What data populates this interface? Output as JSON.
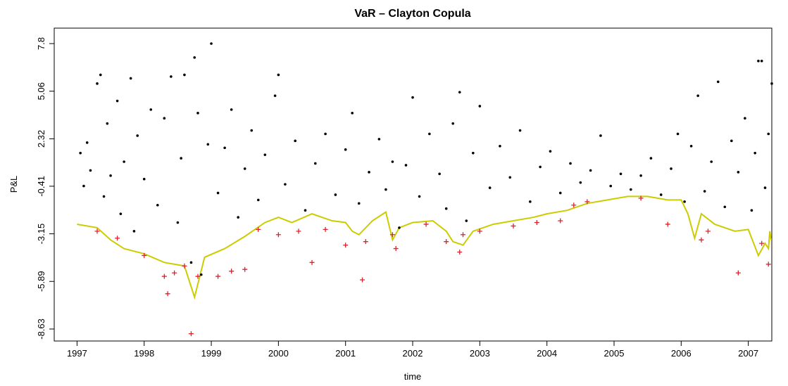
{
  "chart_data": {
    "type": "scatter",
    "title": "VaR – Clayton Copula",
    "xlabel": "time",
    "ylabel": "P&L",
    "xlim": [
      1996.66,
      2007.35
    ],
    "ylim": [
      -9.32,
      8.69
    ],
    "xticks": [
      1997,
      1998,
      1999,
      2000,
      2001,
      2002,
      2003,
      2004,
      2005,
      2006,
      2007
    ],
    "yticks": [
      -8.63,
      -5.89,
      -3.15,
      -0.41,
      2.32,
      5.06,
      7.8
    ],
    "series": [
      {
        "marker": "dot",
        "color": "#000000",
        "x": [
          1997.05,
          1997.1,
          1997.15,
          1997.2,
          1997.3,
          1997.35,
          1997.4,
          1997.45,
          1997.5,
          1997.6,
          1997.65,
          1997.7,
          1997.8,
          1997.85,
          1997.9,
          1998.0,
          1998.1,
          1998.2,
          1998.3,
          1998.4,
          1998.5,
          1998.55,
          1998.6,
          1998.7,
          1998.75,
          1998.8,
          1998.85,
          1998.95,
          1999.0,
          1999.1,
          1999.2,
          1999.3,
          1999.4,
          1999.5,
          1999.6,
          1999.7,
          1999.8,
          1999.95,
          2000.0,
          2000.1,
          2000.25,
          2000.4,
          2000.55,
          2000.7,
          2000.85,
          2001.0,
          2001.1,
          2001.2,
          2001.35,
          2001.5,
          2001.6,
          2001.7,
          2001.8,
          2001.9,
          2002.0,
          2002.1,
          2002.25,
          2002.4,
          2002.5,
          2002.6,
          2002.7,
          2002.8,
          2002.9,
          2003.0,
          2003.15,
          2003.3,
          2003.45,
          2003.6,
          2003.75,
          2003.9,
          2004.05,
          2004.2,
          2004.35,
          2004.5,
          2004.65,
          2004.8,
          2004.95,
          2005.1,
          2005.25,
          2005.4,
          2005.55,
          2005.7,
          2005.85,
          2005.95,
          2006.05,
          2006.15,
          2006.25,
          2006.35,
          2006.45,
          2006.55,
          2006.65,
          2006.75,
          2006.85,
          2006.95,
          2007.05,
          2007.1,
          2007.15,
          2007.2,
          2007.25,
          2007.3,
          2007.35
        ],
        "values": [
          1.5,
          -0.4,
          2.1,
          0.5,
          5.5,
          6.0,
          -1.0,
          3.2,
          0.2,
          4.5,
          -2.0,
          1.0,
          5.8,
          -3.0,
          2.5,
          0.0,
          4.0,
          -1.5,
          3.5,
          5.9,
          -2.5,
          1.2,
          6.0,
          -4.8,
          7.0,
          3.8,
          -5.5,
          2.0,
          7.8,
          -0.8,
          1.8,
          4.0,
          -2.2,
          0.6,
          2.8,
          -1.2,
          1.4,
          4.8,
          6.0,
          -0.3,
          2.2,
          -1.8,
          0.9,
          2.6,
          -0.9,
          1.7,
          3.8,
          -1.4,
          0.4,
          2.3,
          -0.6,
          1.0,
          -2.8,
          0.8,
          4.7,
          -1.0,
          2.6,
          0.3,
          -1.7,
          3.2,
          5.0,
          -2.4,
          1.5,
          4.2,
          -0.5,
          1.9,
          0.1,
          2.8,
          -1.3,
          0.7,
          1.6,
          -0.8,
          0.9,
          -0.2,
          0.5,
          2.5,
          -0.4,
          0.3,
          -0.6,
          0.2,
          1.2,
          -0.9,
          0.6,
          2.6,
          -1.3,
          1.9,
          4.8,
          -0.7,
          1.0,
          5.6,
          -1.6,
          2.2,
          0.4,
          3.5,
          -1.8,
          1.5,
          6.8,
          6.8,
          -0.5,
          2.6,
          5.5
        ]
      },
      {
        "marker": "line",
        "color": "#cccc00",
        "x": [
          1997.0,
          1997.3,
          1997.5,
          1997.7,
          1998.0,
          1998.3,
          1998.6,
          1998.75,
          1998.9,
          1999.2,
          1999.5,
          1999.8,
          2000.0,
          2000.2,
          2000.5,
          2000.8,
          2001.0,
          2001.1,
          2001.2,
          2001.4,
          2001.6,
          2001.7,
          2001.8,
          2002.0,
          2002.3,
          2002.5,
          2002.6,
          2002.75,
          2002.9,
          2003.2,
          2003.5,
          2003.8,
          2004.0,
          2004.3,
          2004.6,
          2004.9,
          2005.2,
          2005.5,
          2005.8,
          2006.0,
          2006.1,
          2006.2,
          2006.3,
          2006.5,
          2006.8,
          2007.0,
          2007.15,
          2007.25,
          2007.3,
          2007.32,
          2007.34
        ],
        "values": [
          -2.6,
          -2.8,
          -3.5,
          -4.0,
          -4.3,
          -4.8,
          -5.0,
          -6.8,
          -4.5,
          -4.0,
          -3.3,
          -2.5,
          -2.2,
          -2.5,
          -2.0,
          -2.4,
          -2.5,
          -3.0,
          -3.2,
          -2.4,
          -1.9,
          -3.5,
          -2.8,
          -2.5,
          -2.4,
          -3.0,
          -3.6,
          -3.8,
          -3.0,
          -2.6,
          -2.4,
          -2.2,
          -2.0,
          -1.8,
          -1.4,
          -1.2,
          -1.0,
          -1.0,
          -1.2,
          -1.2,
          -2.0,
          -3.4,
          -2.0,
          -2.6,
          -3.0,
          -2.9,
          -4.4,
          -3.7,
          -4.0,
          -3.0,
          -3.5
        ]
      },
      {
        "marker": "plus",
        "color": "#e0202a",
        "x": [
          1997.3,
          1997.6,
          1998.0,
          1998.3,
          1998.35,
          1998.45,
          1998.6,
          1998.7,
          1998.8,
          1999.1,
          1999.3,
          1999.5,
          1999.7,
          2000.0,
          2000.3,
          2000.5,
          2000.7,
          2001.0,
          2001.25,
          2001.3,
          2001.7,
          2001.75,
          2002.2,
          2002.5,
          2002.7,
          2002.75,
          2003.0,
          2003.5,
          2003.85,
          2004.2,
          2004.4,
          2004.6,
          2005.4,
          2005.8,
          2006.3,
          2006.4,
          2006.85,
          2007.2,
          2007.3
        ],
        "values": [
          -3.0,
          -3.4,
          -4.4,
          -5.6,
          -6.6,
          -5.4,
          -5.0,
          -8.9,
          -5.6,
          -5.6,
          -5.3,
          -5.2,
          -2.9,
          -3.2,
          -3.0,
          -4.8,
          -2.9,
          -3.8,
          -5.8,
          -3.6,
          -3.2,
          -4.0,
          -2.6,
          -3.6,
          -4.2,
          -3.2,
          -3.0,
          -2.7,
          -2.5,
          -2.4,
          -1.5,
          -1.3,
          -1.1,
          -2.6,
          -3.5,
          -3.0,
          -5.4,
          -3.7,
          -4.9
        ]
      }
    ]
  }
}
